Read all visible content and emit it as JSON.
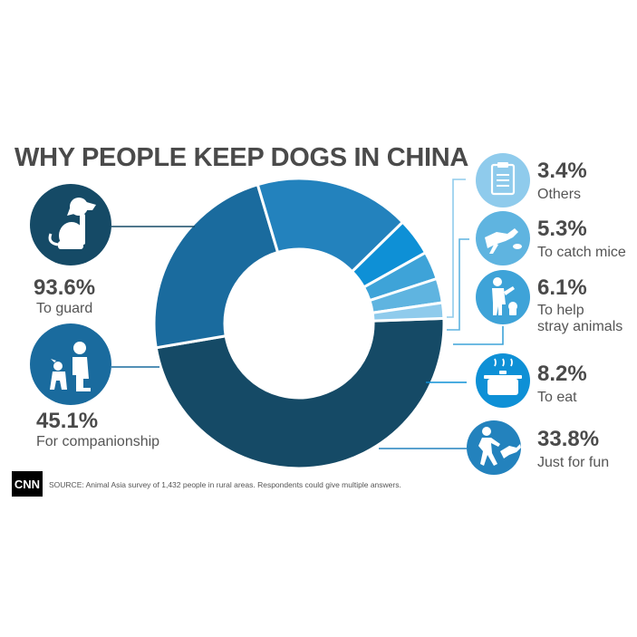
{
  "chart_data": {
    "type": "pie",
    "title": "WHY PEOPLE KEEP DOGS IN CHINA",
    "series": [
      {
        "label": "To guard",
        "value": 93.6,
        "value_label": "93.6%",
        "color": "#154a66",
        "icon": "sitting-dog-icon"
      },
      {
        "label": "For companionship",
        "value": 45.1,
        "value_label": "45.1%",
        "color": "#1a6b9e",
        "icon": "person-with-dog-icon"
      },
      {
        "label": "Just for fun",
        "value": 33.8,
        "value_label": "33.8%",
        "color": "#2382bd",
        "icon": "person-playing-with-dog-icon"
      },
      {
        "label": "To eat",
        "value": 8.2,
        "value_label": "8.2%",
        "color": "#0e90d6",
        "icon": "cooking-pot-icon"
      },
      {
        "label": "To help stray animals",
        "label_lines": [
          "To help",
          "stray animals"
        ],
        "value": 6.1,
        "value_label": "6.1%",
        "color": "#3ea3d8",
        "icon": "person-feeding-animal-icon"
      },
      {
        "label": "To catch mice",
        "value": 5.3,
        "value_label": "5.3%",
        "color": "#5fb4e0",
        "icon": "dog-catching-mouse-icon"
      },
      {
        "label": "Others",
        "value": 3.4,
        "value_label": "3.4%",
        "color": "#8fcbec",
        "icon": "clipboard-icon"
      }
    ]
  },
  "source_note": "SOURCE: Animal Asia survey of 1,432 people in rural areas. Respondents could give multiple answers.",
  "brand": {
    "logo_text": "CNN"
  }
}
